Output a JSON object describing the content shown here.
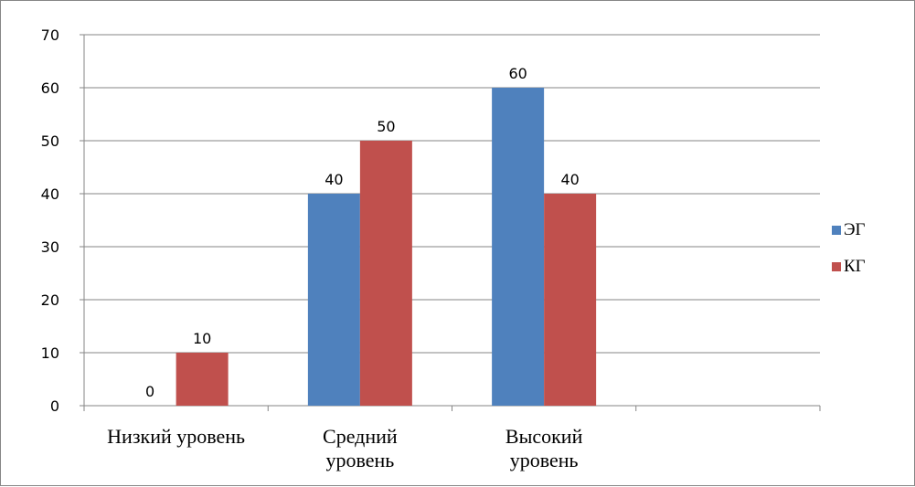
{
  "chart_data": {
    "type": "bar",
    "categories": [
      [
        "Низкий уровень"
      ],
      [
        "Средний",
        "уровень"
      ],
      [
        "Высокий",
        "уровень"
      ],
      [
        ""
      ]
    ],
    "series": [
      {
        "name": "ЭГ",
        "color": "#4F81BD",
        "values": [
          0,
          40,
          60,
          null
        ]
      },
      {
        "name": "КГ",
        "color": "#C0504D",
        "values": [
          10,
          50,
          40,
          null
        ]
      }
    ],
    "ylim": [
      0,
      70
    ],
    "yticks": [
      0,
      10,
      20,
      30,
      40,
      50,
      60,
      70
    ],
    "grid": true,
    "data_labels": true,
    "legend": "right",
    "title": "",
    "xlabel": "",
    "ylabel": ""
  }
}
